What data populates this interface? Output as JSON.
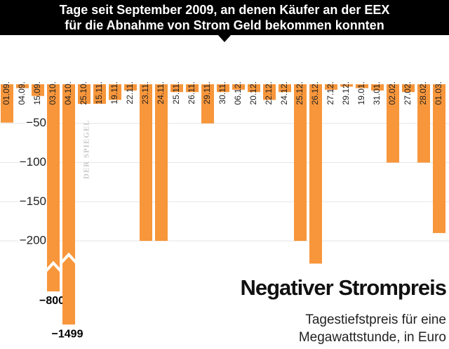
{
  "chart_data": {
    "type": "bar",
    "title": [
      "Tage seit September 2009, an denen Käufer an der EEX",
      "für die Abnahme von Strom Geld bekommen konnten"
    ],
    "heading": "Negativer Strompreis",
    "subtitle": [
      "Tagestiefstpreis für eine",
      "Megawattstunde, in Euro"
    ],
    "watermark": "DER SPIEGEL",
    "categories": [
      "01.09.",
      "04.09.",
      "15.09.",
      "03.10.",
      "04.10.",
      "25.10.",
      "15.11.",
      "19.11.",
      "22.11.",
      "23.11.",
      "24.11.",
      "25.11.",
      "26.11.",
      "29.11.",
      "30.11.",
      "06.12.",
      "20.12.",
      "22.12.",
      "24.12.",
      "25.12.",
      "26.12.",
      "27.12.",
      "29.12.",
      "19.01.",
      "31.01.",
      "02.02.",
      "27.02.",
      "28.02.",
      "01.03."
    ],
    "values": [
      -49,
      -5,
      -15,
      -800,
      -1499,
      -25,
      -25,
      -20,
      -8,
      -200,
      -200,
      -10,
      -10,
      -50,
      -10,
      -7,
      -10,
      -20,
      -10,
      -200,
      -229,
      -7,
      -3,
      -5,
      -8,
      -100,
      -10,
      -100,
      -190
    ],
    "value_labels": [
      null,
      null,
      null,
      "−800",
      "−1499",
      null,
      null,
      null,
      null,
      null,
      null,
      null,
      null,
      null,
      null,
      null,
      null,
      null,
      null,
      null,
      null,
      null,
      null,
      null,
      null,
      null,
      null,
      null,
      null
    ],
    "color": "#f7963b",
    "ylim": [
      -230,
      0
    ],
    "axis_break": true,
    "yticks": [
      {
        "value": -50,
        "label": "−50"
      },
      {
        "value": -100,
        "label": "−100"
      },
      {
        "value": -150,
        "label": "−150"
      },
      {
        "value": -200,
        "label": "−200"
      }
    ],
    "grid": true
  }
}
